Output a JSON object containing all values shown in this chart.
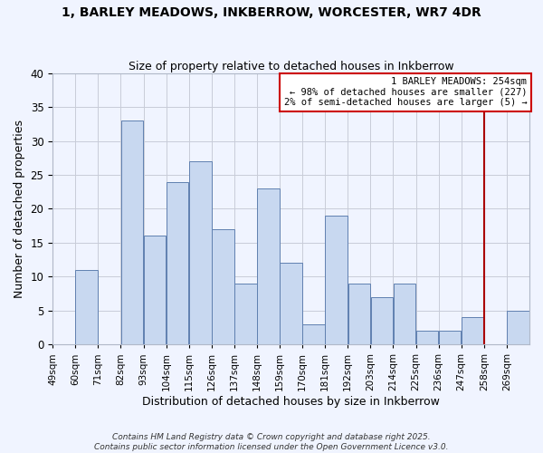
{
  "title": "1, BARLEY MEADOWS, INKBERROW, WORCESTER, WR7 4DR",
  "subtitle": "Size of property relative to detached houses in Inkberrow",
  "xlabel": "Distribution of detached houses by size in Inkberrow",
  "ylabel": "Number of detached properties",
  "bin_labels": [
    "49sqm",
    "60sqm",
    "71sqm",
    "82sqm",
    "93sqm",
    "104sqm",
    "115sqm",
    "126sqm",
    "137sqm",
    "148sqm",
    "159sqm",
    "170sqm",
    "181sqm",
    "192sqm",
    "203sqm",
    "214sqm",
    "225sqm",
    "236sqm",
    "247sqm",
    "258sqm",
    "269sqm"
  ],
  "bar_heights": [
    0,
    11,
    0,
    33,
    16,
    24,
    27,
    17,
    9,
    23,
    12,
    3,
    19,
    9,
    7,
    9,
    2,
    2,
    4,
    0,
    5
  ],
  "bar_color": "#c8d8f0",
  "bar_edge_color": "#6080b0",
  "grid_color": "#c8ccd8",
  "background_color": "#f0f4ff",
  "bin_edges": [
    49,
    60,
    71,
    82,
    93,
    104,
    115,
    126,
    137,
    148,
    159,
    170,
    181,
    192,
    203,
    214,
    225,
    236,
    247,
    258,
    269,
    280
  ],
  "annotation_title": "1 BARLEY MEADOWS: 254sqm",
  "annotation_line1": "← 98% of detached houses are smaller (227)",
  "annotation_line2": "2% of semi-detached houses are larger (5) →",
  "annotation_box_color": "#ffffff",
  "annotation_box_edge": "#cc0000",
  "marker_line_color": "#aa0000",
  "ylim": [
    0,
    40
  ],
  "yticks": [
    0,
    5,
    10,
    15,
    20,
    25,
    30,
    35,
    40
  ],
  "footer1": "Contains HM Land Registry data © Crown copyright and database right 2025.",
  "footer2": "Contains public sector information licensed under the Open Government Licence v3.0."
}
